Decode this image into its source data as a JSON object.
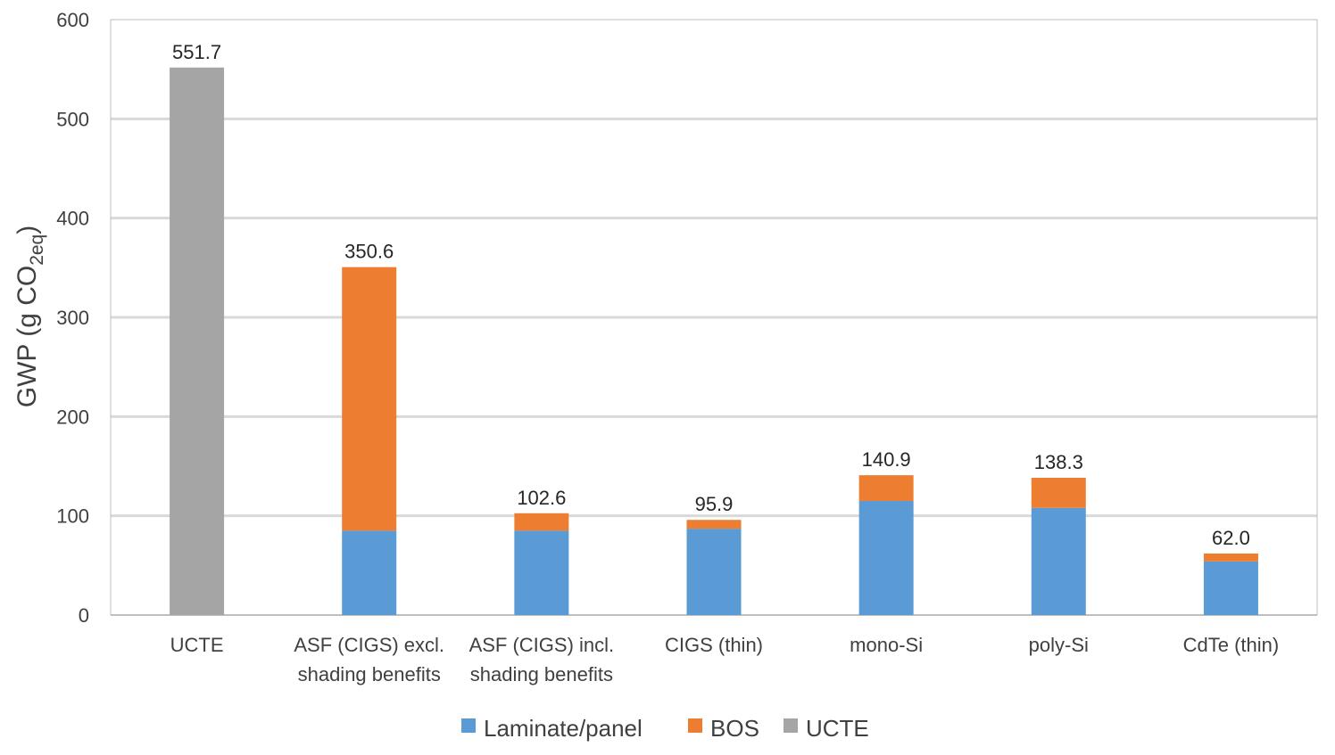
{
  "chart_data": {
    "type": "bar",
    "stacked": true,
    "ylabel_main": "GWP (g CO",
    "ylabel_sub": "2eq",
    "ylabel_close": ")",
    "ylim": [
      0,
      600
    ],
    "yticks": [
      "0",
      "100",
      "200",
      "300",
      "400",
      "500",
      "600"
    ],
    "ytick_values": [
      0,
      100,
      200,
      300,
      400,
      500,
      600
    ],
    "grid": true,
    "legend_position": "bottom",
    "categories": [
      [
        "UCTE"
      ],
      [
        "ASF (CIGS) excl.",
        "shading benefits"
      ],
      [
        "ASF (CIGS) incl.",
        "shading benefits"
      ],
      [
        "CIGS (thin)"
      ],
      [
        "mono-Si"
      ],
      [
        "poly-Si"
      ],
      [
        "CdTe (thin)"
      ]
    ],
    "series": [
      {
        "name": "Laminate/panel",
        "color": "#5B9BD5",
        "values": [
          0,
          85,
          85,
          87,
          115,
          108,
          54
        ]
      },
      {
        "name": "BOS",
        "color": "#ED7D31",
        "values": [
          0,
          265.6,
          17.6,
          8.9,
          25.9,
          30.3,
          8.0
        ]
      },
      {
        "name": "UCTE",
        "color": "#A5A5A5",
        "values": [
          551.7,
          0,
          0,
          0,
          0,
          0,
          0
        ]
      }
    ],
    "totals": [
      "551.7",
      "350.6",
      "102.6",
      "95.9",
      "140.9",
      "138.3",
      "62.0"
    ],
    "total_values": [
      551.7,
      350.6,
      102.6,
      95.9,
      140.9,
      138.3,
      62.0
    ]
  }
}
